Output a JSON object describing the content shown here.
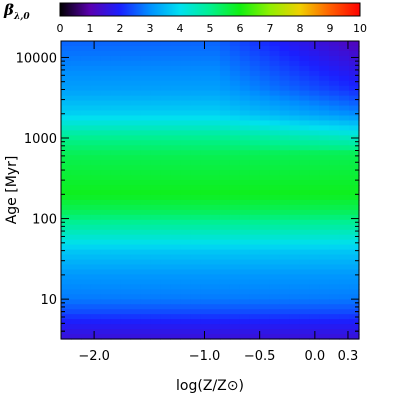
{
  "chart_data": {
    "type": "heatmap",
    "xlabel": "log(Z/Z⊙)",
    "ylabel": "Age [Myr]",
    "xlim": [
      -2.3,
      0.4
    ],
    "ylim_log": [
      3.2,
      16000
    ],
    "x_ticks": [
      {
        "value": -2.0,
        "label": "−2.0"
      },
      {
        "value": -1.0,
        "label": "−1.0"
      },
      {
        "value": -0.5,
        "label": "−0.5"
      },
      {
        "value": 0.0,
        "label": "0.0"
      },
      {
        "value": 0.3,
        "label": "0.3"
      }
    ],
    "y_ticks": [
      {
        "value": 10,
        "label": "10"
      },
      {
        "value": 100,
        "label": "100"
      },
      {
        "value": 1000,
        "label": "1000"
      },
      {
        "value": 10000,
        "label": "10000"
      }
    ],
    "colorbar": {
      "title_main": "β",
      "title_sub": "λ,0",
      "range": [
        0,
        10
      ],
      "ticks": [
        "0",
        "1",
        "2",
        "3",
        "4",
        "5",
        "6",
        "7",
        "8",
        "9",
        "10"
      ],
      "colormap": [
        {
          "v": 0.0,
          "color": "#000000"
        },
        {
          "v": 1.0,
          "color": "#5a00b0"
        },
        {
          "v": 2.0,
          "color": "#1a20ff"
        },
        {
          "v": 3.0,
          "color": "#0090ff"
        },
        {
          "v": 4.0,
          "color": "#00e0f0"
        },
        {
          "v": 5.0,
          "color": "#00f090"
        },
        {
          "v": 6.0,
          "color": "#10f010"
        },
        {
          "v": 7.0,
          "color": "#90f000"
        },
        {
          "v": 8.0,
          "color": "#f0d000"
        },
        {
          "v": 9.0,
          "color": "#ff6000"
        },
        {
          "v": 10.0,
          "color": "#ff0000"
        }
      ]
    },
    "value_profile_vs_age": [
      {
        "age": 3.2,
        "value": 1.5
      },
      {
        "age": 5,
        "value": 1.9
      },
      {
        "age": 7,
        "value": 2.4
      },
      {
        "age": 10,
        "value": 2.8
      },
      {
        "age": 20,
        "value": 3.1
      },
      {
        "age": 40,
        "value": 3.7
      },
      {
        "age": 70,
        "value": 4.6
      },
      {
        "age": 120,
        "value": 5.4
      },
      {
        "age": 200,
        "value": 5.9
      },
      {
        "age": 350,
        "value": 5.7
      },
      {
        "age": 600,
        "value": 5.5
      },
      {
        "age": 1000,
        "value": 5.0
      },
      {
        "age": 2000,
        "value": 3.8
      },
      {
        "age": 4000,
        "value": 3.2
      },
      {
        "age": 8000,
        "value": 2.9
      },
      {
        "age": 16000,
        "value": 2.6
      }
    ],
    "metallicity_effect": {
      "description_free": true,
      "onset_age": 700,
      "onset_logZ": -0.9,
      "max_drop": 1.5
    }
  }
}
